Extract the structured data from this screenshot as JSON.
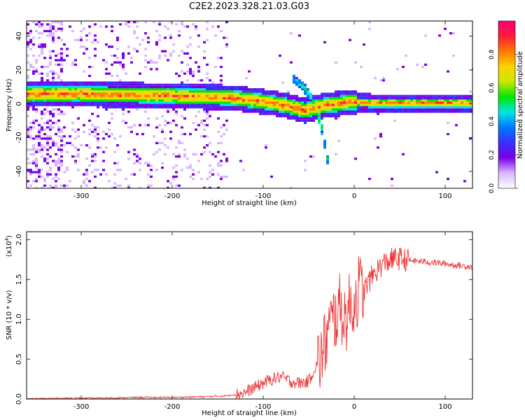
{
  "page": {
    "title": "C2E2.2023.328.21.03.G03"
  },
  "colorbar": {
    "label": "Normalized spectral amplitude",
    "ticks": [
      "0.0",
      "0.2",
      "0.4",
      "0.6",
      "0.8"
    ],
    "tick_values": [
      0.0,
      0.2,
      0.4,
      0.6,
      0.8
    ],
    "range": [
      0,
      1
    ],
    "colors": [
      "#ffffff",
      "#d9b8ff",
      "#7a00e6",
      "#3a2fff",
      "#0077ff",
      "#00e5e5",
      "#00e600",
      "#c8e600",
      "#ffd200",
      "#ff7a00",
      "#ff1a3a",
      "#ff0077"
    ]
  },
  "chart_data": [
    {
      "type": "heatmap",
      "xlabel": "Height of straight line (km)",
      "ylabel": "Frequency (Hz)",
      "xlim": [
        -360,
        130
      ],
      "ylim": [
        -50,
        49
      ],
      "x_ticks": [
        -300,
        -200,
        -100,
        0,
        100
      ],
      "x_tick_labels": [
        "-300",
        "-200",
        "-100",
        "0",
        "100"
      ],
      "y_ticks": [
        -40,
        -20,
        0,
        20,
        40
      ],
      "y_tick_labels": [
        "-40",
        "-20",
        "0",
        "20",
        "40"
      ],
      "ridge": {
        "x": [
          -360,
          -330,
          -300,
          -270,
          -240,
          -210,
          -180,
          -150,
          -130,
          -110,
          -90,
          -70,
          -55,
          -40,
          -30,
          -20,
          -10,
          0,
          20,
          60,
          100,
          130
        ],
        "freq": [
          6.5,
          6.5,
          6.5,
          6.0,
          5.8,
          5.5,
          5.0,
          4.5,
          3.8,
          2.5,
          1.0,
          -1.0,
          -3.5,
          -1.0,
          0.0,
          0.5,
          1.5,
          1.5,
          1.0,
          1.0,
          1.0,
          1.0
        ]
      },
      "branches": [
        {
          "x": [
            -70,
            -55,
            -45,
            -38,
            -30
          ],
          "freq": [
            16,
            10,
            2,
            -10,
            -35
          ]
        },
        {
          "x": [
            -60,
            -50,
            -42,
            -35
          ],
          "freq": [
            12,
            5,
            -5,
            -20
          ]
        }
      ]
    },
    {
      "type": "line",
      "xlabel": "Height of straight line (km)",
      "ylabel": "SNR (10 * v/v)",
      "y_scale_label": "(x10",
      "y_scale_exp": "4",
      "xlim": [
        -360,
        130
      ],
      "ylim": [
        0,
        2.1
      ],
      "x_ticks": [
        -300,
        -200,
        -100,
        0,
        100
      ],
      "x_tick_labels": [
        "-300",
        "-200",
        "-100",
        "0",
        "100"
      ],
      "y_ticks": [
        0.0,
        0.5,
        1.0,
        1.5,
        2.0
      ],
      "y_tick_labels": [
        "0.0",
        "0.5",
        "1.0",
        "1.5",
        "2.0"
      ],
      "series": [
        {
          "color": "#ee3333",
          "x": [
            -360,
            -320,
            -280,
            -240,
            -200,
            -160,
            -140,
            -120,
            -110,
            -100,
            -90,
            -80,
            -70,
            -60,
            -50,
            -45,
            -40,
            -35,
            -30,
            -25,
            -20,
            -15,
            -10,
            -5,
            0,
            5,
            10,
            15,
            20,
            30,
            40,
            50,
            60,
            70,
            80,
            90,
            100,
            110,
            120,
            130
          ],
          "y": [
            0.0,
            0.01,
            0.01,
            0.02,
            0.02,
            0.03,
            0.04,
            0.08,
            0.14,
            0.2,
            0.25,
            0.28,
            0.22,
            0.2,
            0.22,
            0.35,
            0.45,
            0.55,
            0.8,
            0.95,
            1.05,
            1.15,
            1.0,
            1.15,
            1.2,
            1.4,
            1.35,
            1.45,
            1.55,
            1.68,
            1.75,
            1.76,
            1.74,
            1.73,
            1.72,
            1.71,
            1.7,
            1.68,
            1.67,
            1.66
          ]
        }
      ]
    }
  ]
}
